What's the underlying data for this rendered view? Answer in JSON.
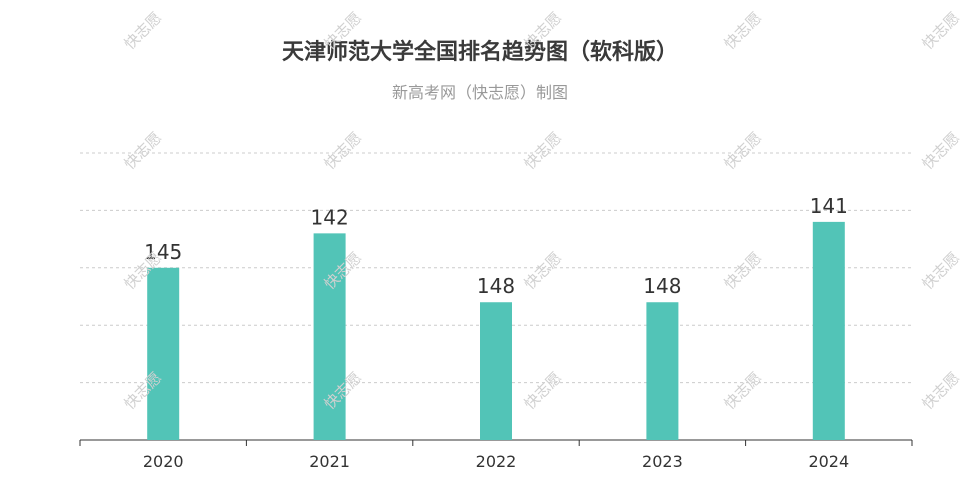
{
  "header": {
    "title": "天津师范大学全国排名趋势图（软科版）",
    "subtitle": "新高考网（快志愿）制图"
  },
  "watermark": "快志愿",
  "colors": {
    "bar": "#52c4b7",
    "grid": "#cccccc",
    "axis": "#333333",
    "label": "#333333"
  },
  "chart_data": {
    "type": "bar",
    "title": "天津师范大学全国排名趋势图（软科版）",
    "subtitle": "新高考网（快志愿）制图",
    "categories": [
      "2020",
      "2021",
      "2022",
      "2023",
      "2024"
    ],
    "values": [
      145,
      142,
      148,
      148,
      141
    ],
    "value_labels": [
      "145",
      "142",
      "148",
      "148",
      "141"
    ],
    "y_axis": "inverted rank (lower rank = taller bar)",
    "ylim": [
      160,
      135
    ],
    "grid": true,
    "grid_style": "dashed",
    "legend": "none"
  }
}
